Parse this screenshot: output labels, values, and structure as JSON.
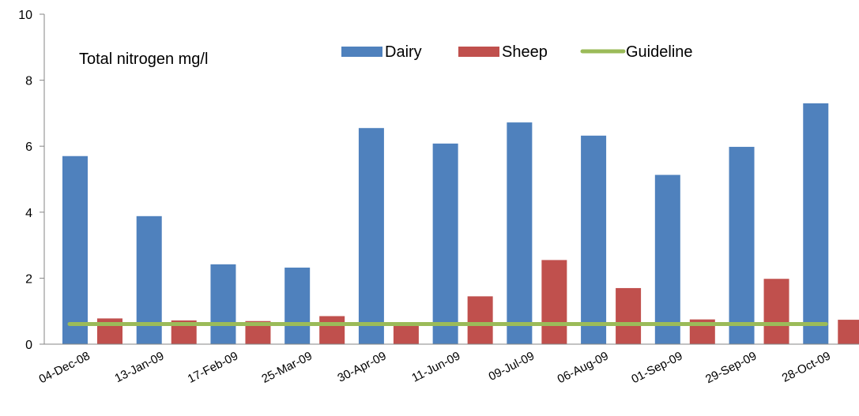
{
  "chart_data": {
    "type": "bar",
    "title": "Total nitrogen mg/l",
    "xlabel": "",
    "ylabel": "",
    "ylim": [
      0,
      10
    ],
    "y_ticks": [
      0,
      2,
      4,
      6,
      8,
      10
    ],
    "grid": false,
    "legend_placement": "top",
    "categories": [
      "04-Dec-08",
      "13-Jan-09",
      "17-Feb-09",
      "25-Mar-09",
      "30-Apr-09",
      "11-Jun-09",
      "09-Jul-09",
      "06-Aug-09",
      "01-Sep-09",
      "29-Sep-09",
      "28-Oct-09"
    ],
    "series": [
      {
        "name": "Dairy",
        "type": "bar",
        "color": "#4F81BD",
        "values": [
          5.7,
          3.88,
          2.42,
          2.32,
          6.55,
          6.08,
          6.72,
          6.32,
          5.13,
          5.98,
          7.3
        ]
      },
      {
        "name": "Sheep",
        "type": "bar",
        "color": "#C0504D",
        "values": [
          0.78,
          0.72,
          0.7,
          0.85,
          0.55,
          1.45,
          2.55,
          1.7,
          0.75,
          1.98,
          0.74
        ]
      },
      {
        "name": "Guideline",
        "type": "line",
        "color": "#9BBB59",
        "values": [
          0.61,
          0.61,
          0.61,
          0.61,
          0.61,
          0.61,
          0.61,
          0.61,
          0.61,
          0.61,
          0.61
        ]
      }
    ]
  }
}
